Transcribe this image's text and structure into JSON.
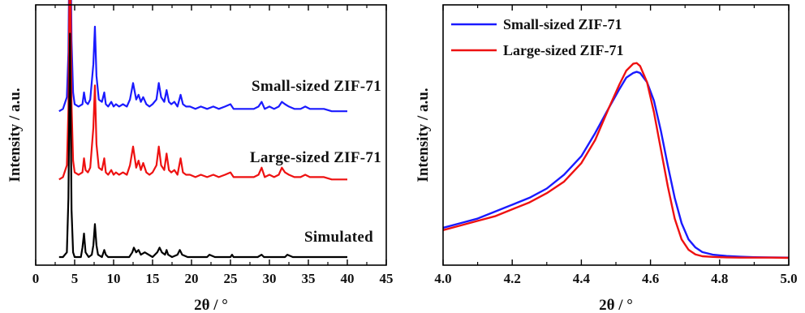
{
  "chart_data": [
    {
      "type": "line",
      "xlabel": "2θ / °",
      "ylabel": "Intensity / a.u.",
      "xlim": [
        0,
        45
      ],
      "xticks": [
        "0",
        "5",
        "10",
        "15",
        "20",
        "25",
        "30",
        "35",
        "40",
        "45"
      ],
      "y_tick_labels": false,
      "series": [
        {
          "name": "Small-sized ZIF-71",
          "color": "#1a1aff",
          "offset": 0.62,
          "x": [
            3.0,
            3.5,
            4.0,
            4.2,
            4.4,
            4.6,
            4.8,
            5.0,
            5.5,
            6.0,
            6.2,
            6.4,
            6.7,
            7.0,
            7.4,
            7.6,
            7.8,
            8.1,
            8.5,
            8.8,
            9.0,
            9.3,
            9.7,
            10.0,
            10.3,
            10.7,
            11.2,
            11.7,
            12.1,
            12.5,
            12.9,
            13.2,
            13.5,
            13.8,
            14.2,
            14.6,
            15.0,
            15.5,
            15.8,
            16.1,
            16.5,
            16.8,
            17.1,
            17.4,
            17.8,
            18.2,
            18.6,
            18.9,
            19.3,
            19.8,
            20.5,
            21.2,
            22.0,
            22.8,
            23.5,
            24.3,
            25.0,
            25.4,
            25.8,
            26.5,
            27.3,
            28.0,
            28.6,
            29.0,
            29.4,
            30.0,
            30.6,
            31.2,
            31.6,
            32.0,
            32.5,
            33.2,
            34.0,
            34.6,
            35.2,
            36.0,
            37.0,
            38.0,
            39.0,
            40.0
          ],
          "y": [
            0.0,
            0.01,
            0.06,
            0.25,
            0.95,
            0.3,
            0.08,
            0.03,
            0.02,
            0.03,
            0.08,
            0.04,
            0.03,
            0.05,
            0.2,
            0.36,
            0.15,
            0.05,
            0.04,
            0.08,
            0.03,
            0.02,
            0.04,
            0.02,
            0.03,
            0.02,
            0.03,
            0.02,
            0.05,
            0.12,
            0.05,
            0.07,
            0.04,
            0.06,
            0.03,
            0.02,
            0.03,
            0.05,
            0.12,
            0.06,
            0.04,
            0.09,
            0.04,
            0.03,
            0.04,
            0.02,
            0.07,
            0.03,
            0.02,
            0.02,
            0.01,
            0.02,
            0.01,
            0.02,
            0.01,
            0.02,
            0.03,
            0.01,
            0.01,
            0.01,
            0.01,
            0.01,
            0.02,
            0.04,
            0.01,
            0.02,
            0.01,
            0.02,
            0.04,
            0.03,
            0.02,
            0.01,
            0.01,
            0.02,
            0.01,
            0.01,
            0.01,
            0.0,
            0.0,
            0.0
          ]
        },
        {
          "name": "Large-sized ZIF-71",
          "color": "#ee1111",
          "offset": 0.33,
          "x": [
            3.0,
            3.5,
            4.0,
            4.2,
            4.4,
            4.6,
            4.8,
            5.0,
            5.5,
            6.0,
            6.2,
            6.4,
            6.7,
            7.0,
            7.4,
            7.6,
            7.8,
            8.1,
            8.5,
            8.8,
            9.0,
            9.3,
            9.7,
            10.0,
            10.3,
            10.7,
            11.2,
            11.7,
            12.1,
            12.5,
            12.9,
            13.2,
            13.5,
            13.8,
            14.2,
            14.6,
            15.0,
            15.5,
            15.8,
            16.1,
            16.5,
            16.8,
            17.1,
            17.4,
            17.8,
            18.2,
            18.6,
            18.9,
            19.3,
            19.8,
            20.5,
            21.2,
            22.0,
            22.8,
            23.5,
            24.3,
            25.0,
            25.4,
            25.8,
            26.5,
            27.3,
            28.0,
            28.6,
            29.0,
            29.4,
            30.0,
            30.6,
            31.2,
            31.6,
            32.0,
            32.5,
            33.2,
            34.0,
            34.6,
            35.2,
            36.0,
            37.0,
            38.0,
            39.0,
            40.0
          ],
          "y": [
            0.0,
            0.01,
            0.06,
            0.3,
            1.07,
            0.32,
            0.08,
            0.03,
            0.02,
            0.03,
            0.09,
            0.04,
            0.03,
            0.05,
            0.22,
            0.4,
            0.15,
            0.05,
            0.04,
            0.09,
            0.03,
            0.02,
            0.04,
            0.02,
            0.03,
            0.02,
            0.03,
            0.02,
            0.06,
            0.14,
            0.05,
            0.08,
            0.04,
            0.07,
            0.03,
            0.02,
            0.03,
            0.06,
            0.14,
            0.06,
            0.04,
            0.11,
            0.04,
            0.03,
            0.04,
            0.02,
            0.09,
            0.03,
            0.02,
            0.02,
            0.01,
            0.02,
            0.01,
            0.02,
            0.01,
            0.02,
            0.03,
            0.01,
            0.01,
            0.01,
            0.01,
            0.01,
            0.02,
            0.05,
            0.01,
            0.02,
            0.01,
            0.02,
            0.05,
            0.03,
            0.02,
            0.01,
            0.01,
            0.02,
            0.01,
            0.01,
            0.01,
            0.0,
            0.0,
            0.0
          ]
        },
        {
          "name": "Simulated",
          "color": "#000000",
          "offset": 0.0,
          "x": [
            3.0,
            3.5,
            4.0,
            4.2,
            4.4,
            4.6,
            4.8,
            5.0,
            5.8,
            6.0,
            6.2,
            6.4,
            6.8,
            7.2,
            7.4,
            7.6,
            7.8,
            8.0,
            8.5,
            8.8,
            9.0,
            9.3,
            10.0,
            11.0,
            12.0,
            12.4,
            12.6,
            12.9,
            13.2,
            13.5,
            14.0,
            15.0,
            15.6,
            15.9,
            16.2,
            16.6,
            16.8,
            17.0,
            17.5,
            18.2,
            18.5,
            18.8,
            19.5,
            21.0,
            22.0,
            22.3,
            23.0,
            25.0,
            25.2,
            25.4,
            26.0,
            28.5,
            29.0,
            29.3,
            30.0,
            31.0,
            32.0,
            32.3,
            33.0,
            35.0,
            37.0,
            40.0
          ],
          "y": [
            0.0,
            0.0,
            0.02,
            0.25,
            0.95,
            0.2,
            0.02,
            0.0,
            0.0,
            0.04,
            0.1,
            0.02,
            0.0,
            0.01,
            0.05,
            0.14,
            0.05,
            0.01,
            0.0,
            0.03,
            0.01,
            0.0,
            0.0,
            0.0,
            0.0,
            0.02,
            0.04,
            0.02,
            0.03,
            0.01,
            0.02,
            0.0,
            0.02,
            0.04,
            0.02,
            0.01,
            0.03,
            0.01,
            0.0,
            0.01,
            0.03,
            0.01,
            0.0,
            0.0,
            0.0,
            0.01,
            0.0,
            0.0,
            0.01,
            0.0,
            0.0,
            0.0,
            0.01,
            0.0,
            0.0,
            0.0,
            0.0,
            0.01,
            0.0,
            0.0,
            0.0,
            0.0
          ]
        }
      ],
      "annotations": [
        "Small-sized ZIF-71",
        "Large-sized ZIF-71",
        "Simulated"
      ]
    },
    {
      "type": "line",
      "xlabel": "2θ / °",
      "ylabel": "Intensity / a.u.",
      "xlim": [
        4.0,
        5.0
      ],
      "xticks": [
        "4.0",
        "4.2",
        "4.4",
        "4.6",
        "4.8",
        "5.0"
      ],
      "y_tick_labels": false,
      "legend_position": "top-left",
      "series": [
        {
          "name": "Small-sized ZIF-71",
          "color": "#1a1aff",
          "x": [
            4.0,
            4.05,
            4.1,
            4.15,
            4.2,
            4.25,
            4.3,
            4.35,
            4.4,
            4.44,
            4.48,
            4.51,
            4.53,
            4.55,
            4.56,
            4.57,
            4.59,
            4.61,
            4.63,
            4.65,
            4.67,
            4.69,
            4.71,
            4.73,
            4.75,
            4.78,
            4.82,
            4.86,
            4.9,
            4.95,
            5.0
          ],
          "y": [
            0.13,
            0.15,
            0.17,
            0.2,
            0.23,
            0.26,
            0.3,
            0.36,
            0.44,
            0.54,
            0.65,
            0.73,
            0.78,
            0.8,
            0.805,
            0.8,
            0.76,
            0.68,
            0.55,
            0.4,
            0.26,
            0.15,
            0.08,
            0.045,
            0.025,
            0.014,
            0.008,
            0.005,
            0.003,
            0.002,
            0.001
          ]
        },
        {
          "name": "Large-sized ZIF-71",
          "color": "#ee1111",
          "x": [
            4.0,
            4.05,
            4.1,
            4.15,
            4.2,
            4.25,
            4.3,
            4.35,
            4.4,
            4.44,
            4.48,
            4.51,
            4.53,
            4.55,
            4.56,
            4.57,
            4.59,
            4.61,
            4.63,
            4.65,
            4.67,
            4.69,
            4.71,
            4.73,
            4.75,
            4.78,
            4.82,
            4.86,
            4.9,
            4.95,
            5.0
          ],
          "y": [
            0.12,
            0.14,
            0.16,
            0.18,
            0.21,
            0.24,
            0.28,
            0.33,
            0.41,
            0.51,
            0.65,
            0.75,
            0.81,
            0.84,
            0.843,
            0.83,
            0.76,
            0.63,
            0.47,
            0.31,
            0.17,
            0.08,
            0.035,
            0.015,
            0.007,
            0.004,
            0.002,
            0.001,
            0.001,
            0.001,
            0.0
          ]
        }
      ]
    }
  ]
}
